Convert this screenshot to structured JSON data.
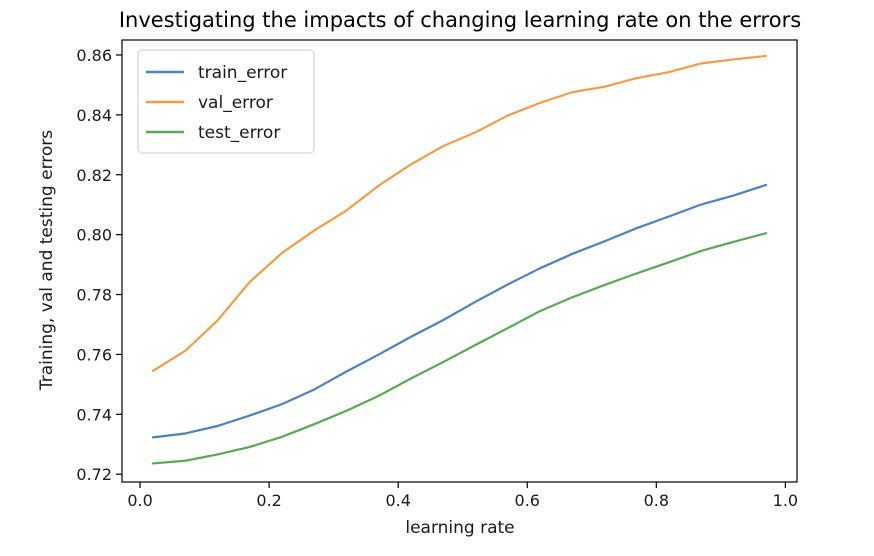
{
  "chart_data": {
    "type": "line",
    "title": "Investigating the impacts of changing learning rate on the errors",
    "xlabel": "learning rate",
    "ylabel": "Training, val and testing errors",
    "xlim": [
      -0.028,
      1.018
    ],
    "ylim": [
      0.7174,
      0.865
    ],
    "xticks": [
      0.0,
      0.2,
      0.4,
      0.6,
      0.8,
      1.0
    ],
    "xtick_labels": [
      "0.0",
      "0.2",
      "0.4",
      "0.6",
      "0.8",
      "1.0"
    ],
    "yticks": [
      0.72,
      0.74,
      0.76,
      0.78,
      0.8,
      0.82,
      0.84,
      0.86
    ],
    "ytick_labels": [
      "0.72",
      "0.74",
      "0.76",
      "0.78",
      "0.80",
      "0.82",
      "0.84",
      "0.86"
    ],
    "grid": false,
    "legend_position": "top-left",
    "x": [
      0.02,
      0.07,
      0.12,
      0.17,
      0.22,
      0.27,
      0.32,
      0.37,
      0.42,
      0.47,
      0.52,
      0.57,
      0.62,
      0.67,
      0.72,
      0.77,
      0.82,
      0.87,
      0.92,
      0.97
    ],
    "series": [
      {
        "name": "train_error",
        "color": "#4f81bd",
        "values": [
          0.7323,
          0.7336,
          0.7361,
          0.7396,
          0.7434,
          0.7483,
          0.7543,
          0.76,
          0.7659,
          0.7715,
          0.7776,
          0.7834,
          0.7888,
          0.7936,
          0.7978,
          0.8022,
          0.8061,
          0.8101,
          0.8131,
          0.8166
        ]
      },
      {
        "name": "val_error",
        "color": "#f59b48",
        "values": [
          0.7545,
          0.7612,
          0.7713,
          0.7842,
          0.7939,
          0.8014,
          0.8081,
          0.8164,
          0.8235,
          0.8296,
          0.8342,
          0.8398,
          0.844,
          0.8476,
          0.8494,
          0.8523,
          0.8543,
          0.8572,
          0.8585,
          0.8597
        ]
      },
      {
        "name": "test_error",
        "color": "#5aa856",
        "values": [
          0.7236,
          0.7245,
          0.7266,
          0.7291,
          0.7325,
          0.7367,
          0.7412,
          0.7462,
          0.752,
          0.7575,
          0.7632,
          0.7688,
          0.7745,
          0.7791,
          0.7832,
          0.7871,
          0.7908,
          0.7946,
          0.7976,
          0.8005
        ]
      }
    ]
  }
}
